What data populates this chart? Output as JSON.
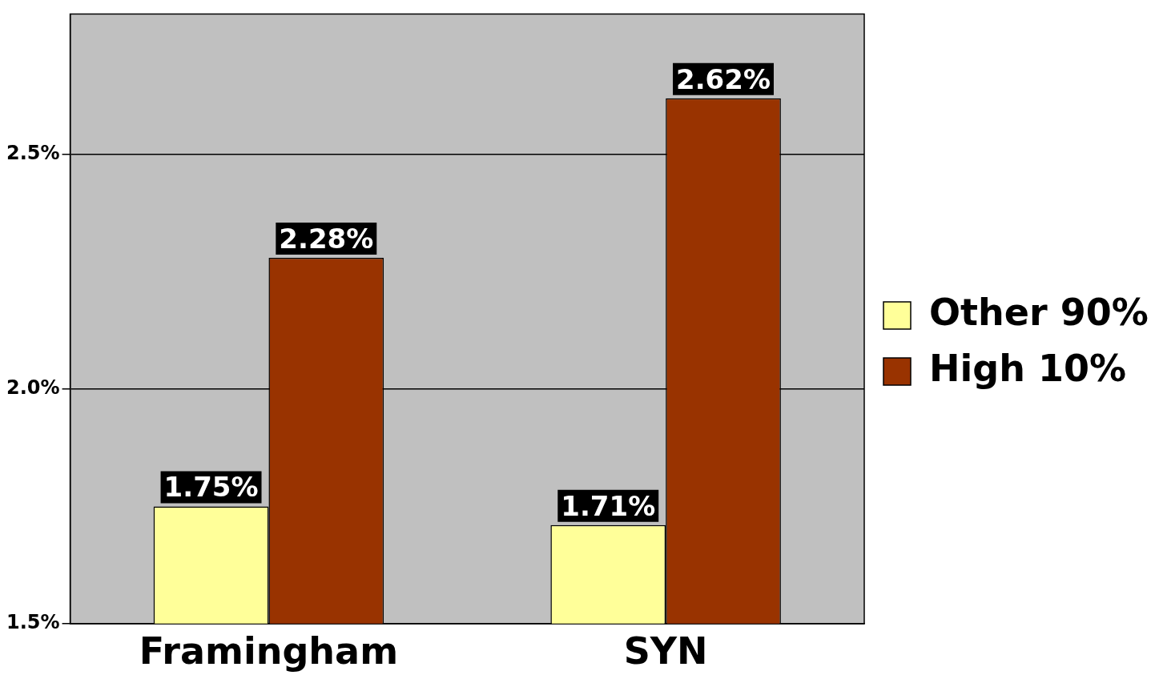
{
  "chart_data": {
    "type": "bar",
    "categories": [
      "Framingham",
      "SYN"
    ],
    "series": [
      {
        "name": "Other 90%",
        "color": "#ffff99",
        "values": [
          1.75,
          1.71
        ],
        "value_labels": [
          "1.75%",
          "1.71%"
        ]
      },
      {
        "name": "High 10%",
        "color": "#993300",
        "values": [
          2.28,
          2.62
        ],
        "value_labels": [
          "2.28%",
          "2.62%"
        ]
      }
    ],
    "ylim": [
      1.5,
      2.8
    ],
    "yticks": [
      {
        "value": 1.5,
        "label": "1.5%"
      },
      {
        "value": 2.0,
        "label": "2.0%"
      },
      {
        "value": 2.5,
        "label": "2.5%"
      }
    ],
    "grid": "y",
    "legend": "right"
  }
}
